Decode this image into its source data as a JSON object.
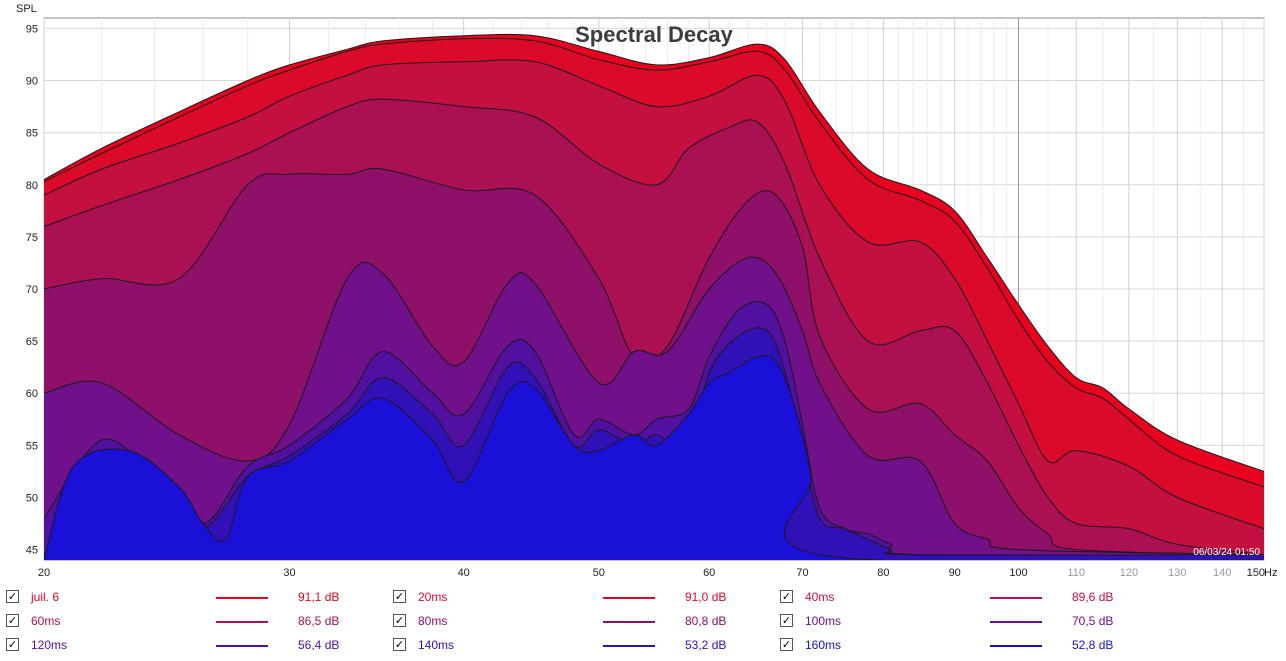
{
  "chart_data": {
    "type": "area",
    "title": "Spectral Decay",
    "ylabel": "SPL",
    "xunit": "Hz",
    "xscale": "log",
    "xlim": [
      20,
      150
    ],
    "ylim": [
      44,
      96
    ],
    "x_ticks": [
      "20",
      "30",
      "40",
      "50",
      "60",
      "70",
      "80",
      "90",
      "100",
      "110",
      "120",
      "130",
      "140",
      "150"
    ],
    "y_ticks": [
      "45",
      "50",
      "55",
      "60",
      "65",
      "70",
      "75",
      "80",
      "85",
      "90",
      "95"
    ],
    "timestamp": "06/03/24 01:50",
    "series": [
      {
        "name": "juil. 6",
        "value_label": "91,1 dB",
        "color": "#e8001e",
        "points": [
          [
            20,
            80.5
          ],
          [
            22,
            83.5
          ],
          [
            25,
            87
          ],
          [
            28,
            90
          ],
          [
            30,
            91.5
          ],
          [
            33,
            93
          ],
          [
            35,
            93.8
          ],
          [
            40,
            94.3
          ],
          [
            45,
            94.3
          ],
          [
            50,
            92.8
          ],
          [
            55,
            91.5
          ],
          [
            60,
            92.2
          ],
          [
            65,
            93.5
          ],
          [
            68,
            92
          ],
          [
            72,
            87
          ],
          [
            78,
            81.5
          ],
          [
            85,
            79.5
          ],
          [
            90,
            77.5
          ],
          [
            95,
            73
          ],
          [
            100,
            68.5
          ],
          [
            105,
            64.5
          ],
          [
            110,
            61.5
          ],
          [
            115,
            60.5
          ],
          [
            120,
            58.5
          ],
          [
            130,
            55.5
          ],
          [
            150,
            52.5
          ]
        ]
      },
      {
        "name": "20ms",
        "value_label": "91,0 dB",
        "color": "#dc0a2a",
        "points": [
          [
            20,
            80.3
          ],
          [
            22,
            83
          ],
          [
            25,
            86.5
          ],
          [
            28,
            89.5
          ],
          [
            30,
            91
          ],
          [
            33,
            92.8
          ],
          [
            35,
            93.5
          ],
          [
            40,
            94
          ],
          [
            45,
            93.8
          ],
          [
            50,
            92
          ],
          [
            55,
            91
          ],
          [
            60,
            91.8
          ],
          [
            65,
            92.8
          ],
          [
            68,
            91
          ],
          [
            72,
            86
          ],
          [
            78,
            80.5
          ],
          [
            85,
            78.5
          ],
          [
            90,
            76.5
          ],
          [
            95,
            72
          ],
          [
            100,
            67
          ],
          [
            105,
            63
          ],
          [
            110,
            60.5
          ],
          [
            115,
            59.5
          ],
          [
            120,
            57.5
          ],
          [
            130,
            54
          ],
          [
            150,
            51
          ]
        ]
      },
      {
        "name": "40ms",
        "value_label": "89,6 dB",
        "color": "#c41040",
        "points": [
          [
            20,
            79
          ],
          [
            22,
            81.5
          ],
          [
            25,
            84
          ],
          [
            28,
            86.5
          ],
          [
            30,
            88.5
          ],
          [
            33,
            90.5
          ],
          [
            35,
            91.5
          ],
          [
            40,
            91.8
          ],
          [
            45,
            91.8
          ],
          [
            50,
            89.5
          ],
          [
            55,
            87.5
          ],
          [
            60,
            88.5
          ],
          [
            65,
            90.5
          ],
          [
            68,
            88
          ],
          [
            72,
            80
          ],
          [
            78,
            74.5
          ],
          [
            85,
            74.5
          ],
          [
            90,
            71
          ],
          [
            95,
            65
          ],
          [
            100,
            59
          ],
          [
            105,
            53.5
          ],
          [
            110,
            54.5
          ],
          [
            120,
            53
          ],
          [
            130,
            50
          ],
          [
            150,
            47
          ]
        ]
      },
      {
        "name": "60ms",
        "value_label": "86,5 dB",
        "color": "#ab1054",
        "points": [
          [
            20,
            76
          ],
          [
            22,
            78
          ],
          [
            25,
            80.5
          ],
          [
            28,
            83
          ],
          [
            30,
            85
          ],
          [
            33,
            87.5
          ],
          [
            35,
            88.2
          ],
          [
            40,
            87.5
          ],
          [
            45,
            86.5
          ],
          [
            50,
            82
          ],
          [
            55,
            80
          ],
          [
            58,
            83.5
          ],
          [
            62,
            85.5
          ],
          [
            65,
            86
          ],
          [
            68,
            82
          ],
          [
            72,
            73
          ],
          [
            78,
            65
          ],
          [
            85,
            66
          ],
          [
            90,
            66
          ],
          [
            95,
            61
          ],
          [
            100,
            55
          ],
          [
            105,
            50
          ],
          [
            110,
            47.5
          ],
          [
            120,
            47
          ],
          [
            130,
            45.5
          ],
          [
            150,
            44.5
          ]
        ]
      },
      {
        "name": "80ms",
        "value_label": "80,8 dB",
        "color": "#8f1068",
        "points": [
          [
            20,
            70
          ],
          [
            22,
            71
          ],
          [
            25,
            71
          ],
          [
            28,
            80
          ],
          [
            30,
            81
          ],
          [
            33,
            81
          ],
          [
            35,
            81.5
          ],
          [
            40,
            79.5
          ],
          [
            45,
            79
          ],
          [
            50,
            71
          ],
          [
            53,
            63.5
          ],
          [
            56,
            64.5
          ],
          [
            60,
            73
          ],
          [
            64,
            78.5
          ],
          [
            67,
            79
          ],
          [
            70,
            74
          ],
          [
            72,
            65.5
          ],
          [
            78,
            58.5
          ],
          [
            85,
            59
          ],
          [
            90,
            56
          ],
          [
            95,
            53.5
          ],
          [
            100,
            49
          ],
          [
            105,
            46.5
          ],
          [
            110,
            45
          ],
          [
            150,
            44.5
          ]
        ]
      },
      {
        "name": "100ms",
        "value_label": "70,5 dB",
        "color": "#70108a",
        "points": [
          [
            20,
            60
          ],
          [
            22,
            61
          ],
          [
            25,
            56
          ],
          [
            28,
            53.5
          ],
          [
            30,
            57
          ],
          [
            33,
            71
          ],
          [
            35,
            71.5
          ],
          [
            38,
            64.5
          ],
          [
            40,
            63
          ],
          [
            43,
            70.5
          ],
          [
            45,
            70.5
          ],
          [
            50,
            61
          ],
          [
            53,
            64
          ],
          [
            56,
            64
          ],
          [
            60,
            70
          ],
          [
            64,
            73
          ],
          [
            67,
            71.5
          ],
          [
            70,
            66
          ],
          [
            72,
            61
          ],
          [
            78,
            54
          ],
          [
            85,
            53.5
          ],
          [
            90,
            47.5
          ],
          [
            95,
            46
          ],
          [
            100,
            45
          ],
          [
            150,
            44.5
          ]
        ]
      },
      {
        "name": "120ms",
        "value_label": "56,4 dB",
        "color": "#5210a0",
        "points": [
          [
            20,
            48
          ],
          [
            22,
            55.5
          ],
          [
            24,
            52
          ],
          [
            26,
            47.5
          ],
          [
            28,
            53
          ],
          [
            30,
            55
          ],
          [
            33,
            59.5
          ],
          [
            35,
            64
          ],
          [
            38,
            60
          ],
          [
            40,
            58
          ],
          [
            43,
            64.5
          ],
          [
            45,
            64
          ],
          [
            48,
            56
          ],
          [
            50,
            57.5
          ],
          [
            53,
            56
          ],
          [
            55,
            57.5
          ],
          [
            58,
            58.5
          ],
          [
            60,
            63.5
          ],
          [
            63,
            68
          ],
          [
            66,
            68.5
          ],
          [
            68,
            65
          ],
          [
            70,
            57
          ],
          [
            72,
            49
          ],
          [
            75,
            47
          ],
          [
            78,
            46.5
          ],
          [
            81,
            45.5
          ],
          [
            85,
            44.5
          ],
          [
            150,
            44.5
          ]
        ]
      },
      {
        "name": "140ms",
        "value_label": "53,2 dB",
        "color": "#3210b8",
        "points": [
          [
            20,
            44.5
          ],
          [
            22,
            51
          ],
          [
            24,
            49
          ],
          [
            26,
            47
          ],
          [
            28,
            52
          ],
          [
            30,
            54
          ],
          [
            33,
            58
          ],
          [
            35,
            61.5
          ],
          [
            38,
            58
          ],
          [
            40,
            55
          ],
          [
            43,
            62.5
          ],
          [
            45,
            61.5
          ],
          [
            48,
            55
          ],
          [
            50,
            56.5
          ],
          [
            53,
            55
          ],
          [
            55,
            56
          ],
          [
            58,
            54.5
          ],
          [
            60,
            62
          ],
          [
            63,
            65.5
          ],
          [
            66,
            66
          ],
          [
            68,
            62
          ],
          [
            70,
            55
          ],
          [
            72,
            48
          ],
          [
            75,
            47
          ],
          [
            78,
            46
          ],
          [
            81,
            45
          ],
          [
            85,
            44.5
          ],
          [
            150,
            44.5
          ]
        ]
      },
      {
        "name": "160ms",
        "value_label": "52,8 dB",
        "color": "#1a10d8",
        "points": [
          [
            20,
            44
          ],
          [
            21,
            53
          ],
          [
            23,
            54.5
          ],
          [
            25,
            51
          ],
          [
            26,
            47.5
          ],
          [
            27,
            46
          ],
          [
            28,
            52
          ],
          [
            30,
            53.5
          ],
          [
            33,
            57.5
          ],
          [
            35,
            59.5
          ],
          [
            38,
            55.5
          ],
          [
            40,
            51.5
          ],
          [
            43,
            60
          ],
          [
            45,
            60.5
          ],
          [
            48,
            55
          ],
          [
            50,
            54.5
          ],
          [
            53,
            56
          ],
          [
            55,
            55
          ],
          [
            58,
            58
          ],
          [
            60,
            61
          ],
          [
            62,
            62
          ],
          [
            65,
            63.5
          ],
          [
            67,
            63
          ],
          [
            69,
            59
          ],
          [
            71,
            52
          ],
          [
            72,
            44.5
          ],
          [
            150,
            44
          ]
        ]
      }
    ]
  }
}
